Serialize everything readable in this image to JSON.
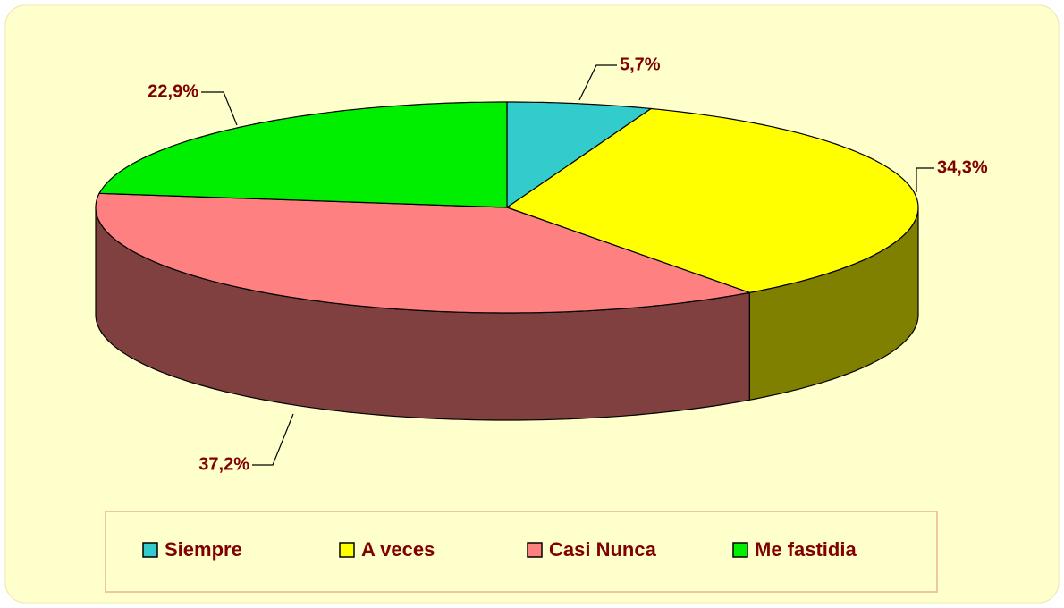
{
  "chart_data": {
    "type": "pie3d",
    "categories": [
      "Siempre",
      "A veces",
      "Casi Nunca",
      "Me fastidia"
    ],
    "values": [
      5.7,
      34.3,
      37.2,
      22.9
    ],
    "value_labels": [
      "5,7%",
      "34,3%",
      "37,2%",
      "22,9%"
    ],
    "colors": [
      "#33CCCC",
      "#FFFF00",
      "#FF8080",
      "#00EE00"
    ],
    "side_colors": [
      "#1A6666",
      "#808000",
      "#804040",
      "#007700"
    ],
    "legend": "bottom"
  }
}
